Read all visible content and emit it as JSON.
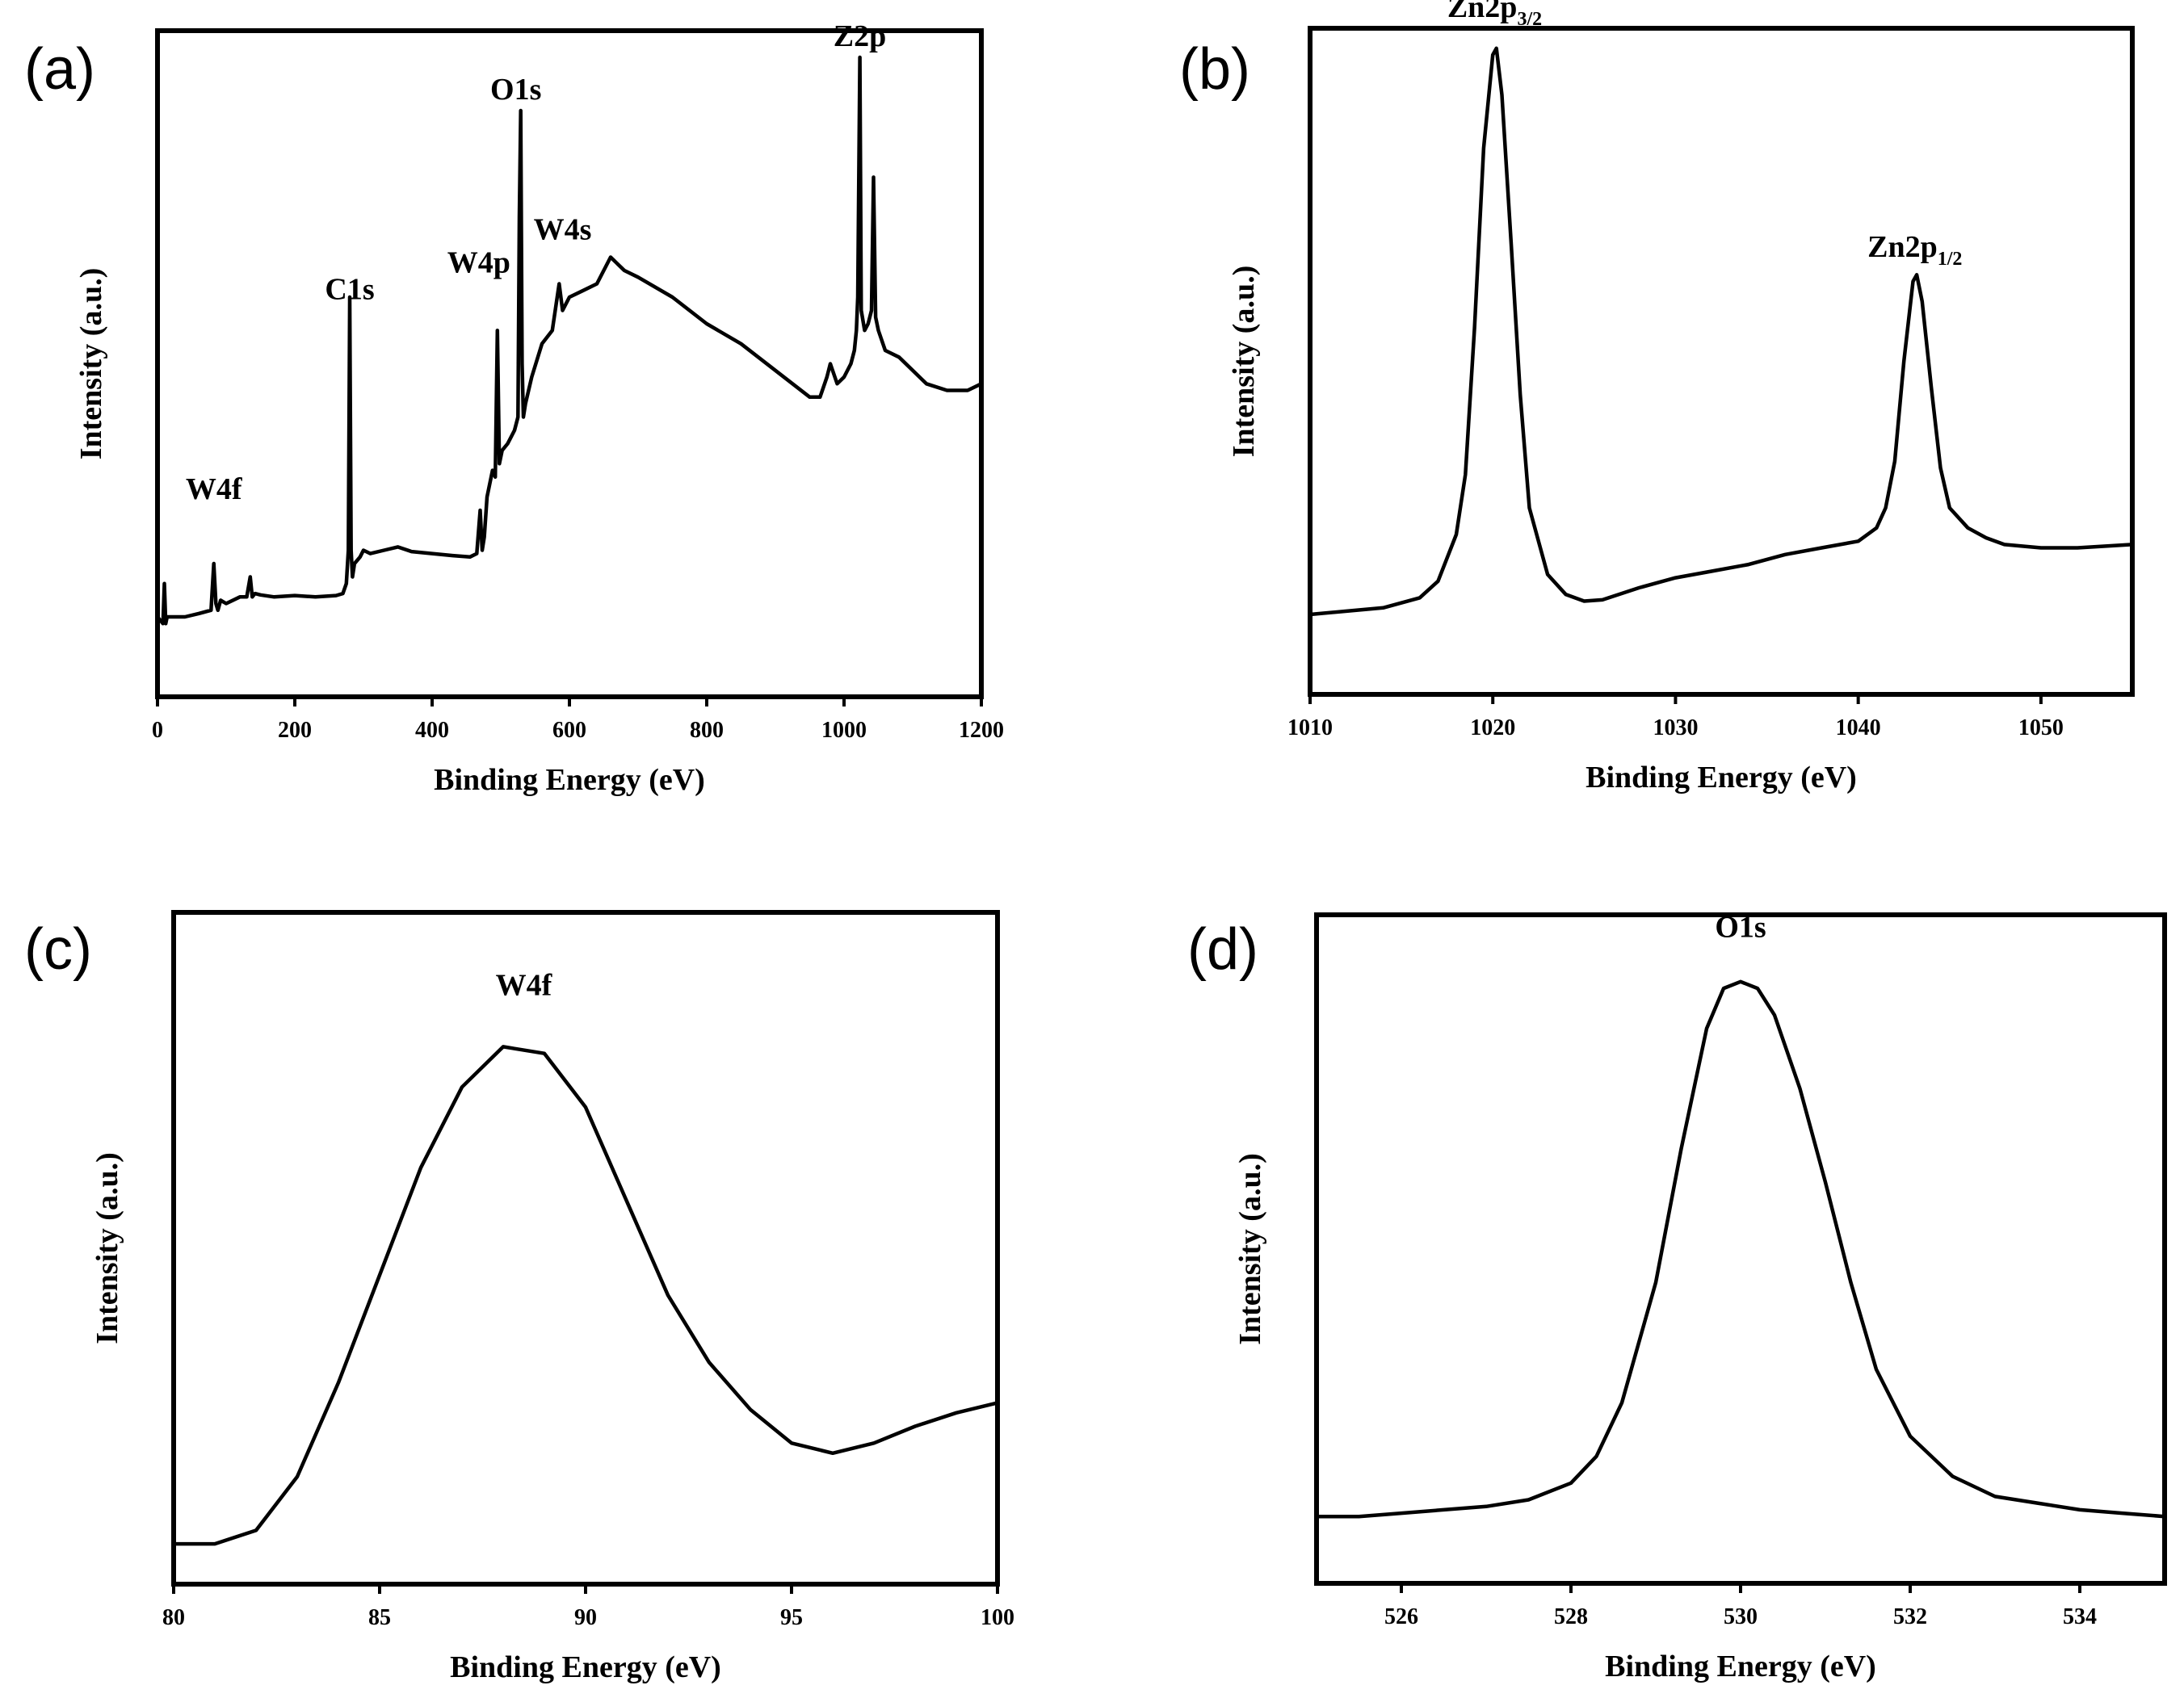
{
  "chart_data": [
    {
      "type": "line",
      "panel_label": "(a)",
      "xlabel": "Binding Energy (eV)",
      "ylabel": "Intensity (a.u.)",
      "xlim": [
        0,
        1200
      ],
      "ylim": [
        0,
        100
      ],
      "xticks": [
        0,
        200,
        400,
        600,
        800,
        1000,
        1200
      ],
      "annotations": [
        {
          "text": "W4f",
          "x": 82,
          "y": 28
        },
        {
          "text": "C1s",
          "x": 280,
          "y": 58
        },
        {
          "text": "W4p",
          "x": 468,
          "y": 62
        },
        {
          "text": "O1s",
          "x": 522,
          "y": 88
        },
        {
          "text": "W4s",
          "x": 590,
          "y": 67
        },
        {
          "text": "Z2p",
          "x": 1023,
          "y": 96
        }
      ],
      "series": [
        {
          "x": [
            0,
            8,
            10,
            12,
            14,
            20,
            40,
            60,
            78,
            82,
            85,
            88,
            92,
            100,
            120,
            130,
            135,
            138,
            142,
            150,
            170,
            200,
            230,
            260,
            270,
            275,
            278,
            280,
            282,
            284,
            287,
            295,
            300,
            310,
            330,
            350,
            370,
            400,
            430,
            455,
            465,
            470,
            473,
            476,
            480,
            488,
            492,
            495,
            498,
            502,
            510,
            520,
            525,
            527,
            529,
            531,
            533,
            536,
            545,
            560,
            575,
            585,
            590,
            600,
            620,
            640,
            650,
            660,
            680,
            700,
            750,
            800,
            850,
            900,
            950,
            965,
            975,
            980,
            990,
            1000,
            1010,
            1015,
            1018,
            1020,
            1023,
            1025,
            1030,
            1035,
            1040,
            1043,
            1046,
            1050,
            1060,
            1080,
            1100,
            1120,
            1150,
            1180,
            1200
          ],
          "y": [
            12,
            11,
            17,
            11,
            12,
            12,
            12,
            12.5,
            13,
            20,
            14,
            13,
            14.5,
            14,
            15,
            15,
            18,
            15,
            15.5,
            15.3,
            15,
            15.2,
            15,
            15.2,
            15.5,
            17,
            22,
            60,
            22,
            18,
            20,
            21,
            22,
            21.5,
            22,
            22.5,
            21.8,
            21.5,
            21.2,
            21,
            21.5,
            28,
            22,
            24,
            30,
            34,
            33,
            55,
            35,
            37,
            38,
            40,
            42,
            72,
            88,
            50,
            42,
            44,
            48,
            53,
            55,
            62,
            58,
            60,
            61,
            62,
            64,
            66,
            64,
            63,
            60,
            56,
            53,
            49,
            45,
            45,
            48,
            50,
            47,
            48,
            50,
            52,
            55,
            60,
            96,
            58,
            55,
            56,
            58,
            78,
            57,
            55,
            52,
            51,
            49,
            47,
            46,
            46,
            47
          ]
        }
      ]
    },
    {
      "type": "line",
      "panel_label": "(b)",
      "xlabel": "Binding Energy (eV)",
      "ylabel": "Intensity (a.u.)",
      "xlim": [
        1010,
        1055
      ],
      "ylim": [
        0,
        100
      ],
      "xticks": [
        1010,
        1020,
        1030,
        1040,
        1050
      ],
      "annotations": [
        {
          "text": "Zn2p",
          "sub": "3/2",
          "x": 1020.1,
          "y": 100
        },
        {
          "text": "Zn2p",
          "sub": "1/2",
          "x": 1043.1,
          "y": 64
        }
      ],
      "series": [
        {
          "x": [
            1010,
            1012,
            1014,
            1016,
            1017,
            1018,
            1018.5,
            1019,
            1019.5,
            1020,
            1020.2,
            1020.5,
            1021,
            1021.5,
            1022,
            1023,
            1024,
            1025,
            1026,
            1028,
            1030,
            1032,
            1034,
            1036,
            1038,
            1040,
            1041,
            1041.5,
            1042,
            1042.5,
            1043,
            1043.2,
            1043.5,
            1044,
            1044.5,
            1045,
            1046,
            1047,
            1048,
            1050,
            1052,
            1055
          ],
          "y": [
            12,
            12.5,
            13,
            14.5,
            17,
            24,
            33,
            55,
            82,
            96,
            97,
            90,
            68,
            45,
            28,
            18,
            15,
            14,
            14.2,
            16,
            17.5,
            18.5,
            19.5,
            21,
            22,
            23,
            25,
            28,
            35,
            50,
            62,
            63,
            59,
            46,
            34,
            28,
            25,
            23.5,
            22.5,
            22,
            22,
            22.5
          ]
        }
      ]
    },
    {
      "type": "line",
      "panel_label": "(c)",
      "xlabel": "Binding Energy (eV)",
      "ylabel": "Intensity (a.u.)",
      "xlim": [
        80,
        100
      ],
      "ylim": [
        0,
        100
      ],
      "xticks": [
        80,
        85,
        90,
        95,
        100
      ],
      "annotations": [
        {
          "text": "W4f",
          "x": 88.5,
          "y": 86
        }
      ],
      "series": [
        {
          "x": [
            80,
            81,
            82,
            83,
            84,
            85,
            86,
            87,
            88,
            89,
            90,
            91,
            92,
            93,
            94,
            95,
            96,
            97,
            98,
            99,
            100
          ],
          "y": [
            6,
            6,
            8,
            16,
            30,
            46,
            62,
            74,
            80,
            79,
            71,
            57,
            43,
            33,
            26,
            21,
            19.5,
            21,
            23.5,
            25.5,
            27
          ]
        }
      ]
    },
    {
      "type": "line",
      "panel_label": "(d)",
      "xlabel": "Binding Energy (eV)",
      "ylabel": "Intensity (a.u.)",
      "xlim": [
        525,
        535
      ],
      "ylim": [
        0,
        100
      ],
      "xticks": [
        526,
        528,
        530,
        532,
        534
      ],
      "annotations": [
        {
          "text": "O1s",
          "x": 530,
          "y": 95
        }
      ],
      "series": [
        {
          "x": [
            525,
            525.5,
            526,
            526.5,
            527,
            527.5,
            528,
            528.3,
            528.6,
            529,
            529.3,
            529.6,
            529.8,
            530,
            530.2,
            530.4,
            530.7,
            531,
            531.3,
            531.6,
            532,
            532.5,
            533,
            533.5,
            534,
            534.5,
            535
          ],
          "y": [
            10,
            10,
            10.5,
            11,
            11.5,
            12.5,
            15,
            19,
            27,
            45,
            65,
            83,
            89,
            90,
            89,
            85,
            74,
            60,
            45,
            32,
            22,
            16,
            13,
            12,
            11,
            10.5,
            10
          ]
        }
      ]
    }
  ]
}
